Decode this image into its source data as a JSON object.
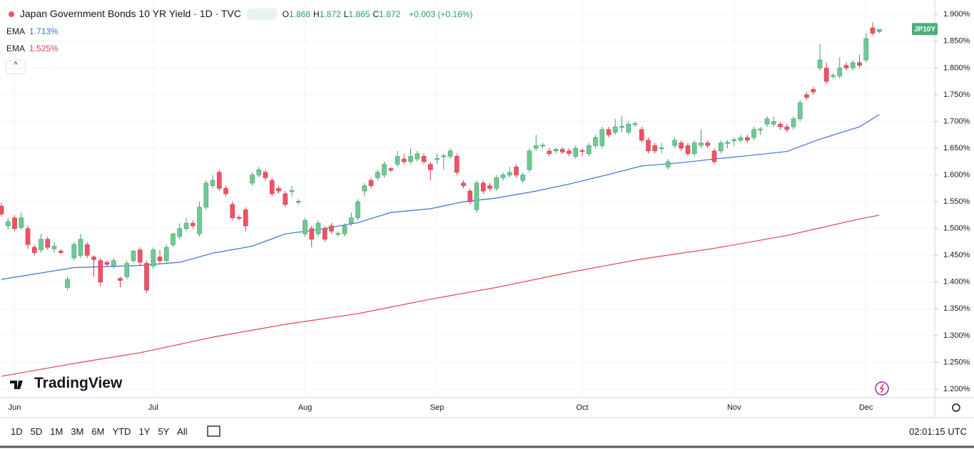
{
  "header": {
    "title": "Japan Government Bonds 10 YR Yield · 1D · TVC",
    "ohlc": [
      {
        "key": "O",
        "value": "1.868"
      },
      {
        "key": "H",
        "value": "1.872"
      },
      {
        "key": "L",
        "value": "1.865"
      },
      {
        "key": "C",
        "value": "1.872"
      }
    ],
    "change": "+0.003 (+0.16%)"
  },
  "chart_data": {
    "type": "candlestick",
    "up_color": "#70c994",
    "down_color": "#ef5366",
    "price_tag": "JP10Y",
    "grid": true,
    "ylim": [
      1.184,
      1.927
    ],
    "yticks": [
      {
        "value": 1.2,
        "label": "1.200%"
      },
      {
        "value": 1.25,
        "label": "1.250%"
      },
      {
        "value": 1.3,
        "label": "1.300%"
      },
      {
        "value": 1.35,
        "label": "1.350%"
      },
      {
        "value": 1.4,
        "label": "1.400%"
      },
      {
        "value": 1.45,
        "label": "1.450%"
      },
      {
        "value": 1.5,
        "label": "1.500%"
      },
      {
        "value": 1.55,
        "label": "1.550%"
      },
      {
        "value": 1.6,
        "label": "1.600%"
      },
      {
        "value": 1.65,
        "label": "1.650%"
      },
      {
        "value": 1.7,
        "label": "1.700%"
      },
      {
        "value": 1.75,
        "label": "1.750%"
      },
      {
        "value": 1.8,
        "label": "1.800%"
      },
      {
        "value": 1.85,
        "label": "1.850%"
      },
      {
        "value": 1.9,
        "label": "1.900%"
      }
    ],
    "categories": [
      null,
      null,
      "Jun",
      null,
      null,
      null,
      null,
      null,
      null,
      null,
      null,
      null,
      null,
      null,
      null,
      null,
      null,
      null,
      null,
      null,
      null,
      null,
      null,
      "Jul",
      null,
      null,
      null,
      null,
      null,
      null,
      null,
      null,
      null,
      null,
      null,
      null,
      null,
      null,
      null,
      null,
      null,
      null,
      null,
      null,
      null,
      null,
      "Aug",
      null,
      null,
      null,
      null,
      null,
      null,
      null,
      null,
      null,
      null,
      null,
      null,
      null,
      null,
      null,
      null,
      null,
      null,
      null,
      "Sep",
      null,
      null,
      null,
      null,
      null,
      null,
      null,
      null,
      null,
      null,
      null,
      null,
      null,
      null,
      null,
      null,
      null,
      null,
      null,
      null,
      null,
      "Oct",
      null,
      null,
      null,
      null,
      null,
      null,
      null,
      null,
      null,
      null,
      null,
      null,
      null,
      null,
      null,
      null,
      null,
      null,
      null,
      null,
      null,
      null,
      "Nov",
      null,
      null,
      null,
      null,
      null,
      null,
      null,
      null,
      null,
      null,
      null,
      null,
      null,
      null,
      null,
      null,
      null,
      null,
      null,
      "Dec",
      null,
      null
    ],
    "candles": [
      [
        1.542,
        1.548,
        1.522,
        1.527
      ],
      [
        1.505,
        1.52,
        1.498,
        1.513
      ],
      [
        1.52,
        1.525,
        1.495,
        1.5
      ],
      [
        1.502,
        1.53,
        1.498,
        1.52
      ],
      [
        1.5,
        1.505,
        1.462,
        1.47
      ],
      [
        1.465,
        1.47,
        1.45,
        1.455
      ],
      [
        1.46,
        1.49,
        1.455,
        1.48
      ],
      [
        1.48,
        1.485,
        1.46,
        1.465
      ],
      [
        1.462,
        1.475,
        1.455,
        1.467
      ],
      [
        1.458,
        1.462,
        1.452,
        1.455
      ],
      [
        1.39,
        1.41,
        1.385,
        1.405
      ],
      [
        1.445,
        1.475,
        1.44,
        1.47
      ],
      [
        1.45,
        1.49,
        1.445,
        1.48
      ],
      [
        1.47,
        1.475,
        1.445,
        1.45
      ],
      [
        1.447,
        1.45,
        1.41,
        1.442
      ],
      [
        1.44,
        1.445,
        1.392,
        1.4
      ],
      [
        1.437,
        1.44,
        1.43,
        1.433
      ],
      [
        1.43,
        1.445,
        1.425,
        1.44
      ],
      [
        1.407,
        1.41,
        1.39,
        1.403
      ],
      [
        1.41,
        1.44,
        1.405,
        1.435
      ],
      [
        1.44,
        1.46,
        1.435,
        1.458
      ],
      [
        1.46,
        1.465,
        1.43,
        1.437
      ],
      [
        1.435,
        1.44,
        1.38,
        1.385
      ],
      [
        1.43,
        1.465,
        1.425,
        1.46
      ],
      [
        1.447,
        1.46,
        1.435,
        1.44
      ],
      [
        1.44,
        1.47,
        1.435,
        1.465
      ],
      [
        1.47,
        1.492,
        1.465,
        1.49
      ],
      [
        1.485,
        1.51,
        1.48,
        1.5
      ],
      [
        1.5,
        1.52,
        1.495,
        1.51
      ],
      [
        1.51,
        1.515,
        1.5,
        1.505
      ],
      [
        1.49,
        1.55,
        1.485,
        1.54
      ],
      [
        1.54,
        1.59,
        1.535,
        1.585
      ],
      [
        1.58,
        1.6,
        1.575,
        1.59
      ],
      [
        1.605,
        1.61,
        1.57,
        1.575
      ],
      [
        1.575,
        1.58,
        1.56,
        1.565
      ],
      [
        1.545,
        1.55,
        1.515,
        1.52
      ],
      [
        1.521,
        1.525,
        1.515,
        1.519
      ],
      [
        1.535,
        1.54,
        1.495,
        1.505
      ],
      [
        1.585,
        1.605,
        1.58,
        1.6
      ],
      [
        1.6,
        1.615,
        1.595,
        1.61
      ],
      [
        1.605,
        1.61,
        1.59,
        1.595
      ],
      [
        1.59,
        1.595,
        1.56,
        1.565
      ],
      [
        1.575,
        1.58,
        1.565,
        1.57
      ],
      [
        1.565,
        1.57,
        1.54,
        1.545
      ],
      [
        1.569,
        1.58,
        1.56,
        1.571
      ],
      [
        1.549,
        1.555,
        1.545,
        1.551
      ],
      [
        1.49,
        1.52,
        1.485,
        1.515
      ],
      [
        1.5,
        1.505,
        1.465,
        1.48
      ],
      [
        1.49,
        1.515,
        1.485,
        1.51
      ],
      [
        1.5,
        1.505,
        1.475,
        1.48
      ],
      [
        1.505,
        1.51,
        1.49,
        1.495
      ],
      [
        1.489,
        1.495,
        1.485,
        1.491
      ],
      [
        1.49,
        1.51,
        1.485,
        1.505
      ],
      [
        1.51,
        1.53,
        1.505,
        1.52
      ],
      [
        1.52,
        1.555,
        1.515,
        1.55
      ],
      [
        1.57,
        1.585,
        1.56,
        1.58
      ],
      [
        1.59,
        1.595,
        1.575,
        1.58
      ],
      [
        1.595,
        1.61,
        1.59,
        1.605
      ],
      [
        1.6,
        1.625,
        1.595,
        1.62
      ],
      [
        1.612,
        1.615,
        1.605,
        1.609
      ],
      [
        1.62,
        1.645,
        1.615,
        1.635
      ],
      [
        1.63,
        1.64,
        1.62,
        1.625
      ],
      [
        1.625,
        1.65,
        1.62,
        1.635
      ],
      [
        1.63,
        1.645,
        1.625,
        1.64
      ],
      [
        1.635,
        1.64,
        1.62,
        1.625
      ],
      [
        1.62,
        1.625,
        1.59,
        1.61
      ],
      [
        1.629,
        1.64,
        1.62,
        1.631
      ],
      [
        1.634,
        1.64,
        1.61,
        1.636
      ],
      [
        1.635,
        1.65,
        1.63,
        1.645
      ],
      [
        1.635,
        1.64,
        1.6,
        1.605
      ],
      [
        1.585,
        1.59,
        1.575,
        1.58
      ],
      [
        1.57,
        1.575,
        1.545,
        1.55
      ],
      [
        1.535,
        1.59,
        1.53,
        1.585
      ],
      [
        1.585,
        1.59,
        1.565,
        1.57
      ],
      [
        1.58,
        1.585,
        1.57,
        1.575
      ],
      [
        1.575,
        1.6,
        1.57,
        1.595
      ],
      [
        1.595,
        1.605,
        1.59,
        1.6
      ],
      [
        1.6,
        1.615,
        1.595,
        1.605
      ],
      [
        1.615,
        1.62,
        1.595,
        1.6
      ],
      [
        1.59,
        1.605,
        1.585,
        1.6
      ],
      [
        1.61,
        1.65,
        1.605,
        1.645
      ],
      [
        1.65,
        1.675,
        1.645,
        1.655
      ],
      [
        1.654,
        1.66,
        1.65,
        1.656
      ],
      [
        1.645,
        1.65,
        1.635,
        1.64
      ],
      [
        1.645,
        1.652,
        1.64,
        1.648
      ],
      [
        1.648,
        1.652,
        1.64,
        1.643
      ],
      [
        1.645,
        1.65,
        1.635,
        1.64
      ],
      [
        1.635,
        1.655,
        1.63,
        1.65
      ],
      [
        1.646,
        1.65,
        1.635,
        1.644
      ],
      [
        1.64,
        1.66,
        1.635,
        1.655
      ],
      [
        1.655,
        1.675,
        1.65,
        1.67
      ],
      [
        1.655,
        1.69,
        1.65,
        1.685
      ],
      [
        1.685,
        1.69,
        1.67,
        1.675
      ],
      [
        1.68,
        1.705,
        1.675,
        1.69
      ],
      [
        1.689,
        1.71,
        1.68,
        1.691
      ],
      [
        1.68,
        1.7,
        1.675,
        1.695
      ],
      [
        1.694,
        1.7,
        1.69,
        1.696
      ],
      [
        1.685,
        1.69,
        1.66,
        1.665
      ],
      [
        1.665,
        1.67,
        1.64,
        1.645
      ],
      [
        1.655,
        1.66,
        1.64,
        1.645
      ],
      [
        1.649,
        1.66,
        1.64,
        1.651
      ],
      [
        1.615,
        1.63,
        1.61,
        1.625
      ],
      [
        1.655,
        1.67,
        1.65,
        1.665
      ],
      [
        1.66,
        1.665,
        1.645,
        1.65
      ],
      [
        1.655,
        1.66,
        1.635,
        1.64
      ],
      [
        1.64,
        1.665,
        1.635,
        1.66
      ],
      [
        1.655,
        1.685,
        1.65,
        1.66
      ],
      [
        1.66,
        1.665,
        1.65,
        1.655
      ],
      [
        1.645,
        1.65,
        1.62,
        1.625
      ],
      [
        1.645,
        1.665,
        1.64,
        1.66
      ],
      [
        1.659,
        1.665,
        1.65,
        1.661
      ],
      [
        1.664,
        1.67,
        1.655,
        1.666
      ],
      [
        1.665,
        1.675,
        1.66,
        1.67
      ],
      [
        1.67,
        1.675,
        1.66,
        1.665
      ],
      [
        1.67,
        1.69,
        1.665,
        1.685
      ],
      [
        1.684,
        1.69,
        1.675,
        1.686
      ],
      [
        1.695,
        1.71,
        1.69,
        1.705
      ],
      [
        1.695,
        1.71,
        1.69,
        1.7
      ],
      [
        1.695,
        1.7,
        1.685,
        1.69
      ],
      [
        1.69,
        1.695,
        1.68,
        1.685
      ],
      [
        1.69,
        1.71,
        1.685,
        1.705
      ],
      [
        1.705,
        1.74,
        1.7,
        1.735
      ],
      [
        1.75,
        1.755,
        1.74,
        1.745
      ],
      [
        1.76,
        1.765,
        1.75,
        1.755
      ],
      [
        1.8,
        1.845,
        1.795,
        1.815
      ],
      [
        1.8,
        1.81,
        1.77,
        1.775
      ],
      [
        1.784,
        1.79,
        1.78,
        1.786
      ],
      [
        1.785,
        1.82,
        1.78,
        1.8
      ],
      [
        1.805,
        1.81,
        1.795,
        1.8
      ],
      [
        1.8,
        1.815,
        1.795,
        1.81
      ],
      [
        1.81,
        1.825,
        1.8,
        1.805
      ],
      [
        1.815,
        1.865,
        1.81,
        1.855
      ],
      [
        1.875,
        1.885,
        1.86,
        1.865
      ],
      [
        1.868,
        1.872,
        1.865,
        1.872
      ]
    ],
    "series": [
      {
        "name": "EMA",
        "label": "1.713%",
        "color": "#3d6fdb",
        "x": [
          0,
          11,
          21,
          27,
          32,
          38,
          43,
          48,
          54,
          59,
          65,
          70,
          75,
          81,
          86,
          92,
          97,
          103,
          108,
          113,
          119,
          124,
          130,
          133
        ],
        "values": [
          1.405,
          1.427,
          1.431,
          1.437,
          1.454,
          1.467,
          1.49,
          1.498,
          1.511,
          1.53,
          1.537,
          1.55,
          1.557,
          1.57,
          1.583,
          1.601,
          1.617,
          1.623,
          1.63,
          1.636,
          1.644,
          1.667,
          1.69,
          1.713
        ]
      },
      {
        "name": "EMA",
        "label": "1.525%",
        "color": "#e0434d",
        "x": [
          0,
          11,
          21,
          32,
          43,
          54,
          65,
          75,
          86,
          97,
          108,
          119,
          130,
          133
        ],
        "values": [
          1.224,
          1.248,
          1.268,
          1.297,
          1.321,
          1.341,
          1.368,
          1.39,
          1.418,
          1.443,
          1.463,
          1.487,
          1.518,
          1.525
        ]
      }
    ]
  },
  "toolbar": {
    "ranges": [
      "1D",
      "5D",
      "1M",
      "3M",
      "6M",
      "YTD",
      "1Y",
      "5Y",
      "All"
    ],
    "clock": "02:01:15 UTC",
    "brand": "TradingView"
  }
}
